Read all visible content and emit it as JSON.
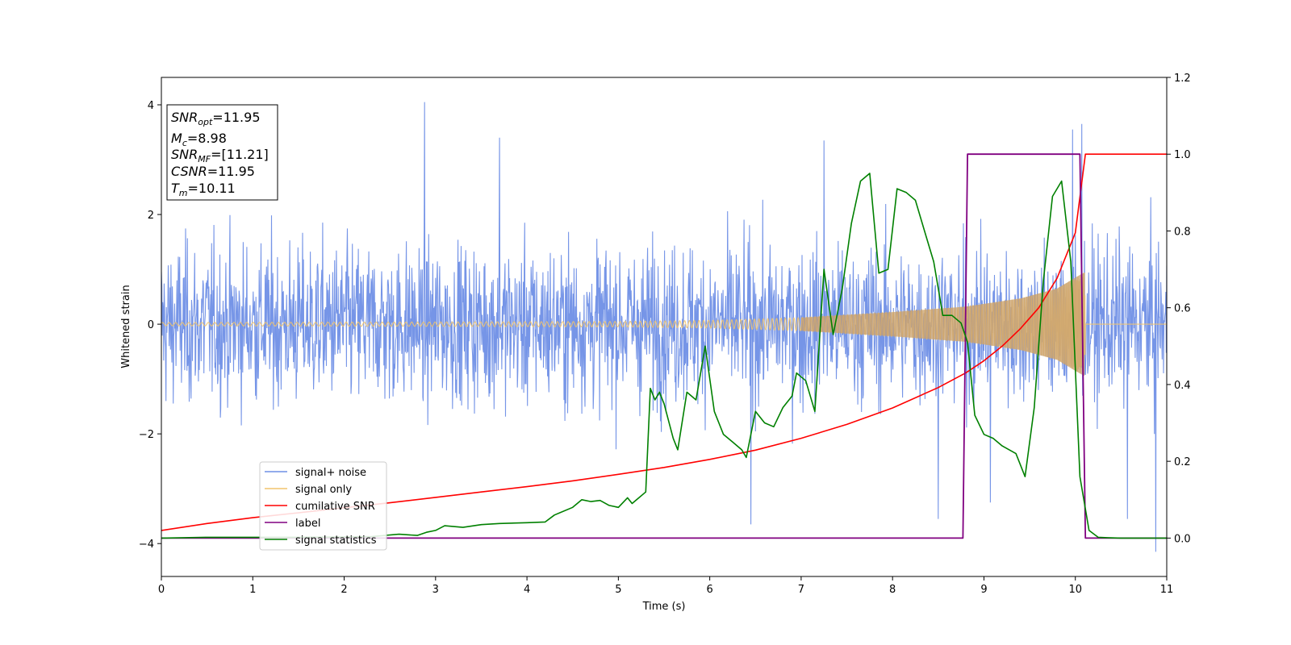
{
  "chart_data": {
    "type": "line",
    "title": "",
    "xlabel": "Time (s)",
    "ylabel": "Whitened strain",
    "xlim": [
      0,
      11
    ],
    "ylim_left": [
      -4.6,
      4.5
    ],
    "ylim_right": [
      -0.1,
      1.2
    ],
    "x_ticks": [
      "0",
      "1",
      "2",
      "3",
      "4",
      "5",
      "6",
      "7",
      "8",
      "9",
      "10",
      "11"
    ],
    "y_ticks_left": [
      "−4",
      "−2",
      "0",
      "2",
      "4"
    ],
    "y_ticks_right": [
      "0.0",
      "0.2",
      "0.4",
      "0.6",
      "0.8",
      "1.0",
      "1.2"
    ],
    "grid": false,
    "legend_position": "lower-left",
    "colors": {
      "noise": "#6f8fe6",
      "signal": "#f2c46d",
      "signal_fill": "#c8a06e",
      "csnr": "#ff0000",
      "label": "#800080",
      "stat": "#008000"
    },
    "series": [
      {
        "name": "signal+ noise",
        "axis": "left",
        "style": "noise band, amplitude about ±2 with spikes up to 4.05 at t≈2.88 and down to −4.15 at t≈10.88",
        "peaks_up": [
          [
            2.88,
            4.05
          ],
          [
            10.07,
            3.65
          ],
          [
            9.97,
            3.55
          ],
          [
            7.25,
            3.35
          ],
          [
            3.7,
            3.4
          ]
        ],
        "peaks_down": [
          [
            10.88,
            -4.15
          ],
          [
            6.45,
            -3.65
          ],
          [
            8.5,
            -3.55
          ],
          [
            10.57,
            -3.55
          ],
          [
            9.07,
            -3.25
          ]
        ]
      },
      {
        "name": "signal only",
        "axis": "left",
        "style": "chirp oscillation around 0, amplitude grows towards merger at t≈10.11",
        "envelope": [
          [
            0,
            0.03
          ],
          [
            3,
            0.04
          ],
          [
            5,
            0.05
          ],
          [
            6,
            0.07
          ],
          [
            7,
            0.12
          ],
          [
            8,
            0.22
          ],
          [
            8.8,
            0.32
          ],
          [
            9.4,
            0.47
          ],
          [
            9.8,
            0.65
          ],
          [
            10.05,
            0.9
          ],
          [
            10.11,
            0.95
          ]
        ]
      },
      {
        "name": "cumilative SNR",
        "axis": "right",
        "x": [
          0,
          0.5,
          1,
          1.5,
          2,
          2.5,
          3,
          3.5,
          4,
          4.5,
          5,
          5.5,
          6,
          6.5,
          7,
          7.5,
          8,
          8.5,
          8.8,
          9,
          9.2,
          9.4,
          9.6,
          9.8,
          10,
          10.11,
          11
        ],
        "y": [
          0.02,
          0.038,
          0.053,
          0.066,
          0.079,
          0.092,
          0.106,
          0.12,
          0.134,
          0.149,
          0.166,
          0.184,
          0.205,
          0.229,
          0.26,
          0.296,
          0.339,
          0.392,
          0.43,
          0.462,
          0.5,
          0.546,
          0.6,
          0.677,
          0.795,
          1.0,
          1.0
        ]
      },
      {
        "name": "label",
        "axis": "right",
        "x": [
          0,
          8.77,
          8.82,
          10.05,
          10.11,
          11
        ],
        "y": [
          0,
          0,
          1,
          1,
          0,
          0
        ]
      },
      {
        "name": "signal statistics",
        "axis": "right",
        "x": [
          0,
          0.5,
          1,
          1.5,
          2,
          2.3,
          2.6,
          2.8,
          2.9,
          3.0,
          3.1,
          3.3,
          3.5,
          3.7,
          4.0,
          4.2,
          4.3,
          4.5,
          4.6,
          4.7,
          4.8,
          4.9,
          5.0,
          5.1,
          5.15,
          5.2,
          5.3,
          5.35,
          5.4,
          5.45,
          5.5,
          5.6,
          5.65,
          5.75,
          5.85,
          5.95,
          6.05,
          6.15,
          6.25,
          6.35,
          6.4,
          6.5,
          6.6,
          6.7,
          6.8,
          6.9,
          6.95,
          7.05,
          7.15,
          7.25,
          7.35,
          7.45,
          7.55,
          7.65,
          7.75,
          7.85,
          7.95,
          8.05,
          8.15,
          8.25,
          8.35,
          8.45,
          8.55,
          8.65,
          8.75,
          8.82,
          8.9,
          9.0,
          9.1,
          9.2,
          9.35,
          9.45,
          9.55,
          9.65,
          9.75,
          9.85,
          9.95,
          10.05,
          10.15,
          10.25,
          10.35,
          10.5,
          11
        ],
        "y": [
          0.0,
          0.002,
          0.002,
          0.002,
          0.003,
          0.004,
          0.01,
          0.007,
          0.015,
          0.02,
          0.032,
          0.028,
          0.035,
          0.038,
          0.04,
          0.042,
          0.06,
          0.08,
          0.1,
          0.095,
          0.098,
          0.085,
          0.08,
          0.105,
          0.09,
          0.1,
          0.12,
          0.39,
          0.36,
          0.38,
          0.35,
          0.26,
          0.23,
          0.38,
          0.36,
          0.5,
          0.33,
          0.27,
          0.25,
          0.23,
          0.21,
          0.33,
          0.3,
          0.29,
          0.34,
          0.37,
          0.43,
          0.41,
          0.33,
          0.7,
          0.53,
          0.65,
          0.82,
          0.93,
          0.95,
          0.69,
          0.7,
          0.91,
          0.9,
          0.88,
          0.8,
          0.72,
          0.58,
          0.58,
          0.56,
          0.51,
          0.32,
          0.27,
          0.26,
          0.24,
          0.22,
          0.16,
          0.34,
          0.67,
          0.89,
          0.93,
          0.72,
          0.16,
          0.02,
          0.002,
          0.001,
          0.0,
          0.0
        ]
      }
    ],
    "info_box": {
      "lines": [
        {
          "main": "SNR",
          "sub": "opt",
          "value": "=11.95"
        },
        {
          "main": "M",
          "sub": "c",
          "value": "=8.98"
        },
        {
          "main": "SNR",
          "sub": "MF",
          "value": "=[11.21]"
        },
        {
          "main": "CSNR",
          "sub": "",
          "value": "=11.95"
        },
        {
          "main": "T",
          "sub": "m",
          "value": "=10.11"
        }
      ]
    },
    "legend": [
      "signal+ noise",
      "signal only",
      "cumilative SNR",
      "label",
      "signal statistics"
    ]
  }
}
